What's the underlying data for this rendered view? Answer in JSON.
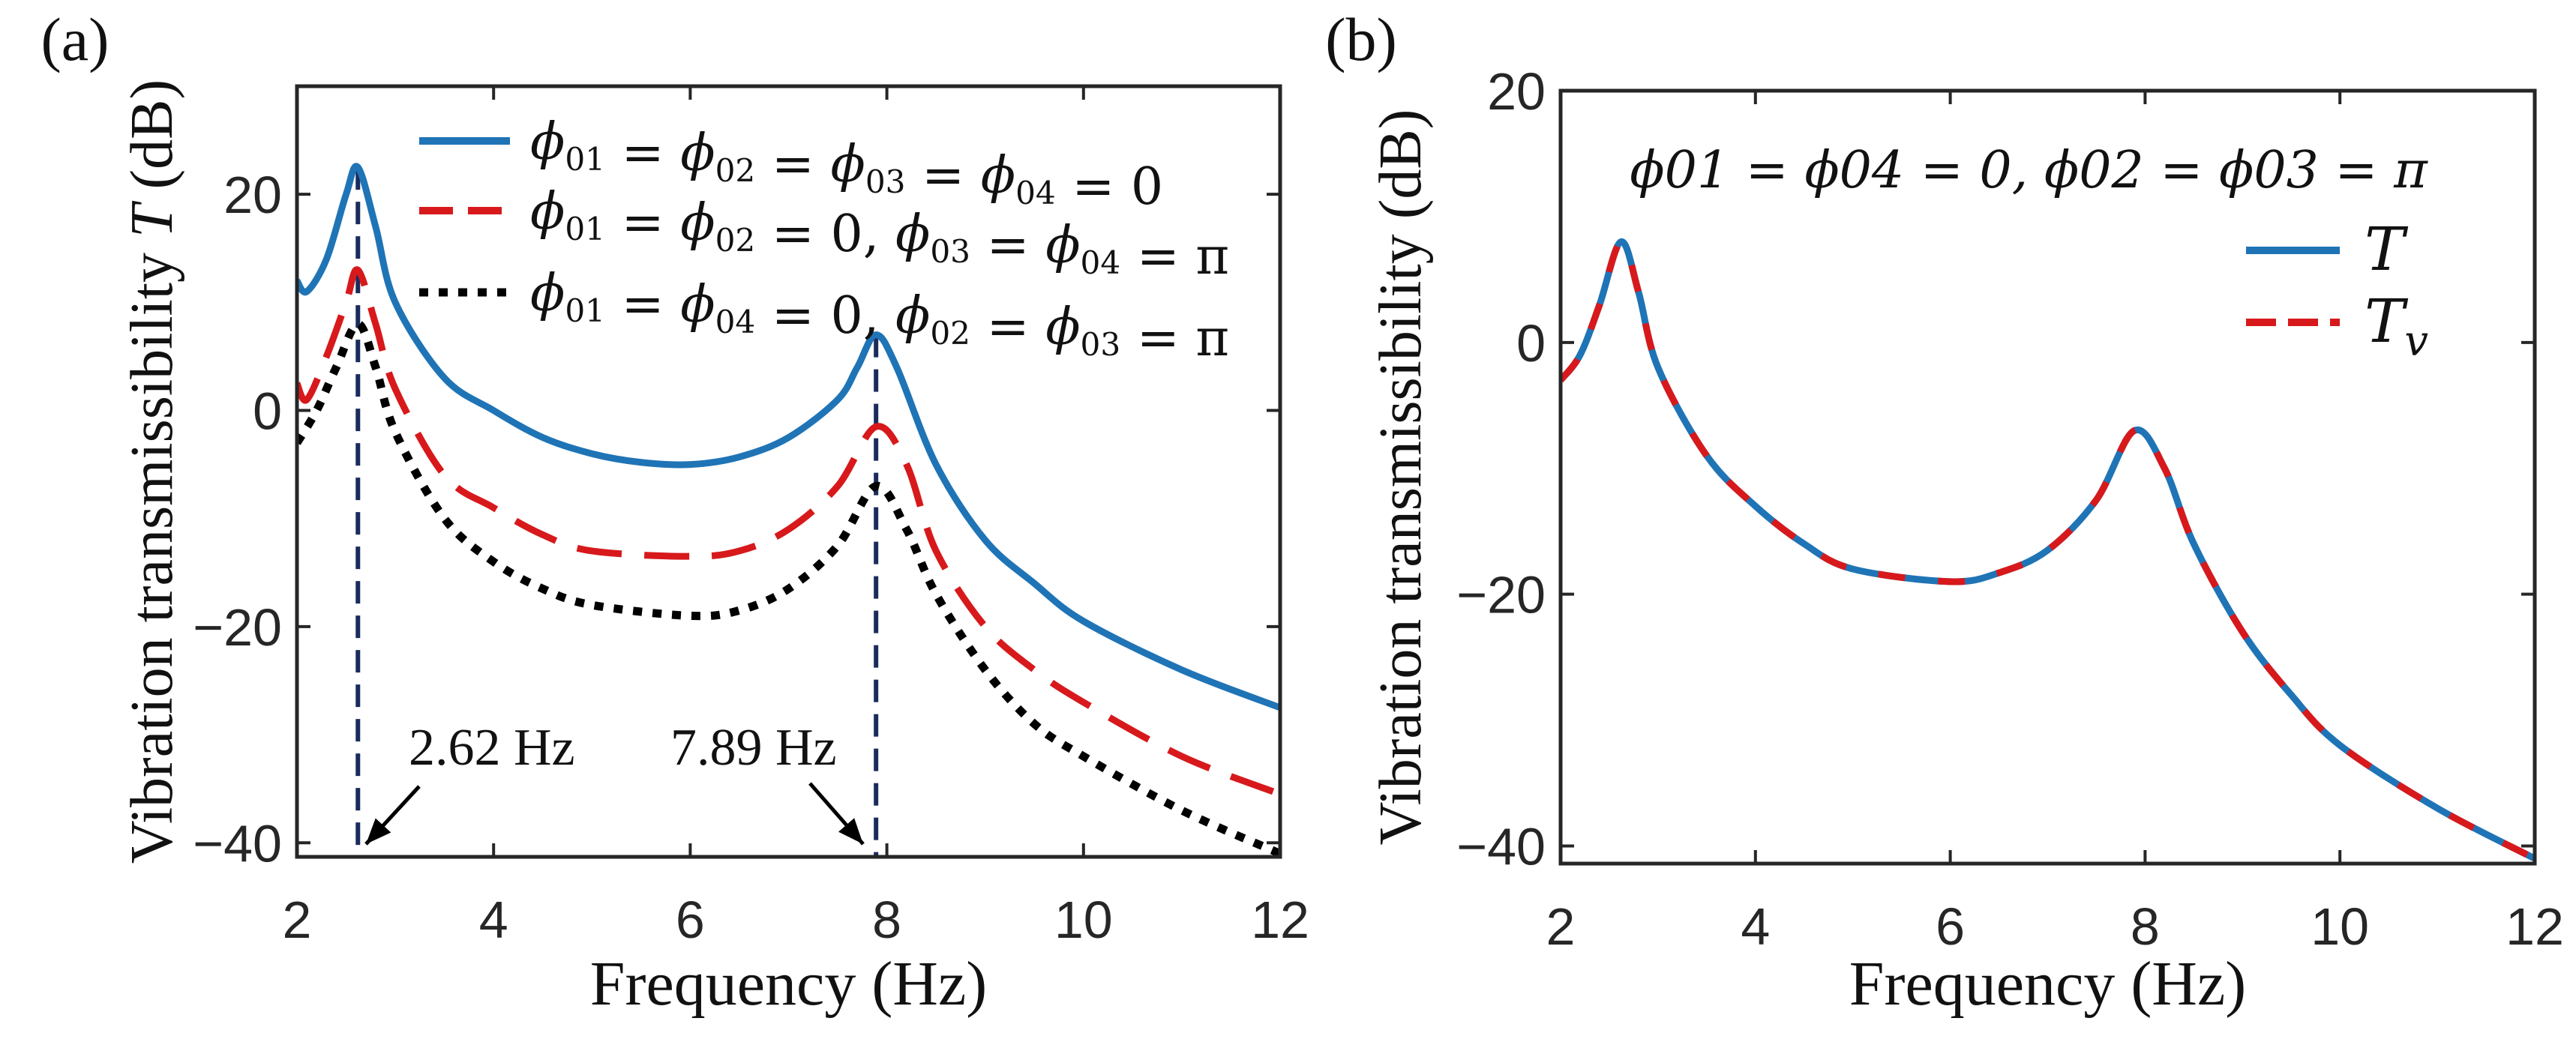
{
  "chart_data": [
    {
      "panel_label": "(a)",
      "type": "line",
      "xlabel": "Frequency (Hz)",
      "ylabel": "Vibration transmissibility T (dB)",
      "xlim": [
        2,
        12
      ],
      "ylim": [
        -41.3,
        30
      ],
      "xticks": [
        2,
        4,
        6,
        8,
        10,
        12
      ],
      "yticks": [
        20,
        0,
        -20,
        -40
      ],
      "ytick_labels": [
        "20",
        "0",
        "−20",
        "−40"
      ],
      "grid": false,
      "legend_position": "top-right",
      "series": [
        {
          "name": "ϕ01 = ϕ02 = ϕ03 = ϕ04 = 0",
          "style": "solid",
          "color": "#1f74b6",
          "x": [
            2,
            2.1,
            2.3,
            2.5,
            2.62,
            2.8,
            3,
            3.5,
            4,
            4.5,
            5,
            5.5,
            6,
            6.5,
            7,
            7.5,
            7.7,
            7.89,
            8.1,
            8.5,
            9,
            9.5,
            10,
            11,
            12
          ],
          "y": [
            12,
            11,
            14,
            20,
            22.5,
            17,
            10,
            3,
            0,
            -2.5,
            -4,
            -4.8,
            -5,
            -4.3,
            -2.5,
            1,
            4,
            7,
            4,
            -5,
            -12,
            -16,
            -19.5,
            -24,
            -27.5
          ]
        },
        {
          "name": "ϕ01 = ϕ02 = 0, ϕ03 = ϕ04 = π",
          "style": "dashed",
          "color": "#d7191c",
          "x": [
            2,
            2.1,
            2.3,
            2.5,
            2.62,
            2.8,
            3,
            3.5,
            4,
            4.5,
            5,
            6,
            6.5,
            7,
            7.5,
            7.89,
            8.2,
            8.5,
            9,
            9.5,
            10,
            11,
            12
          ],
          "y": [
            2.5,
            1,
            5,
            10,
            13,
            8,
            2,
            -6,
            -9,
            -11.5,
            -13,
            -13.5,
            -13,
            -11,
            -7,
            -1.5,
            -5,
            -13,
            -20,
            -24,
            -27,
            -32,
            -35.5
          ]
        },
        {
          "name": "ϕ01 = ϕ04 = 0, ϕ02 = ϕ03 = π",
          "style": "dotted",
          "color": "#000000",
          "x": [
            2,
            2.2,
            2.4,
            2.62,
            2.8,
            3,
            3.5,
            4,
            4.5,
            5,
            6,
            6.5,
            7,
            7.5,
            7.89,
            8.2,
            8.5,
            9,
            9.5,
            10,
            11,
            12
          ],
          "y": [
            -3,
            0,
            4,
            8,
            4,
            -2,
            -10,
            -14,
            -16.5,
            -18,
            -19,
            -18.5,
            -16.5,
            -12.5,
            -7,
            -11,
            -17,
            -24,
            -29,
            -32,
            -37,
            -41
          ]
        }
      ],
      "vlines": [
        2.62,
        7.89
      ],
      "annotations": [
        "2.62 Hz",
        "7.89 Hz"
      ]
    },
    {
      "panel_label": "(b)",
      "type": "line",
      "title": "ϕ01 = ϕ04 = 0, ϕ02 = ϕ03 = π",
      "xlabel": "Frequency (Hz)",
      "ylabel": "Vibration transmissibility (dB)",
      "xlim": [
        2,
        12
      ],
      "ylim": [
        -41.4,
        20
      ],
      "xticks": [
        2,
        4,
        6,
        8,
        10,
        12
      ],
      "yticks": [
        20,
        0,
        -20,
        -40
      ],
      "ytick_labels": [
        "20",
        "0",
        "−20",
        "−40"
      ],
      "grid": false,
      "legend_position": "top-right",
      "series": [
        {
          "name": "T",
          "style": "solid",
          "color": "#1f74b6",
          "x": [
            2,
            2.2,
            2.4,
            2.62,
            2.8,
            3,
            3.5,
            4,
            4.5,
            5,
            6,
            6.5,
            7,
            7.5,
            7.89,
            8.2,
            8.5,
            9,
            9.5,
            10,
            11,
            12
          ],
          "y": [
            -3,
            -1,
            3,
            8,
            4,
            -2,
            -9,
            -13,
            -16,
            -18,
            -19,
            -18.3,
            -16.5,
            -12.5,
            -7,
            -10,
            -16,
            -23,
            -28,
            -32,
            -37,
            -41
          ]
        },
        {
          "name": "Tv",
          "style": "dashed",
          "color": "#d7191c",
          "x": [
            2,
            2.2,
            2.4,
            2.62,
            2.8,
            3,
            3.5,
            4,
            4.5,
            5,
            6,
            6.5,
            7,
            7.5,
            7.89,
            8.2,
            8.5,
            9,
            9.5,
            10,
            11,
            12
          ],
          "y": [
            -3,
            -1,
            3,
            8,
            4,
            -2,
            -9,
            -13,
            -16,
            -18,
            -19,
            -18.3,
            -16.5,
            -12.5,
            -7,
            -10,
            -16,
            -23,
            -28,
            -32,
            -37,
            -41
          ]
        }
      ]
    }
  ]
}
